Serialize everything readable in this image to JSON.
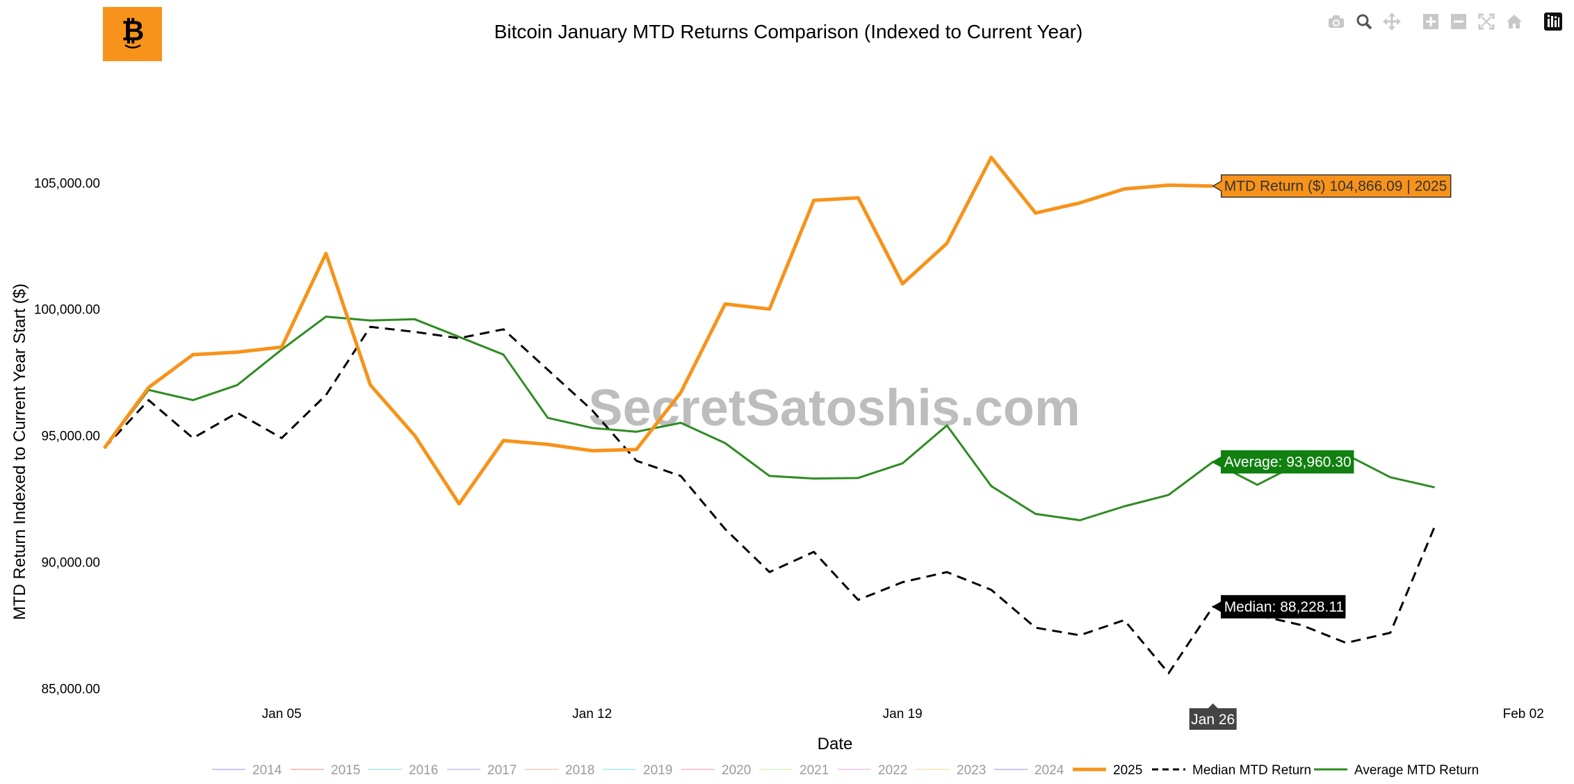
{
  "header": {
    "title": "Bitcoin January MTD Returns Comparison (Indexed to Current Year)",
    "watermark": "SecretSatoshis.com",
    "logo_icon": "bitcoin-face-logo"
  },
  "modebar": {
    "buttons": [
      "camera-icon",
      "zoom-icon",
      "pan-icon",
      "zoom-in-icon",
      "zoom-out-icon",
      "autoscale-icon",
      "home-icon",
      "plotly-logo-icon"
    ]
  },
  "colors": {
    "y2025": "#f7931a",
    "average": "#2e8b22",
    "median": "#000000",
    "average_label_bg": "#118011",
    "median_label_bg": "#000000",
    "x_hover_bg": "#444444"
  },
  "hover": {
    "line_2025": "MTD Return ($) 104,866.09 | 2025",
    "average": "Average: 93,960.30",
    "median": "Median: 88,228.11",
    "x_value": "Jan 26"
  },
  "chart_data": {
    "type": "line",
    "title": "Bitcoin January MTD Returns Comparison (Indexed to Current Year)",
    "xlabel": "Date",
    "ylabel": "MTD Return Indexed to Current Year Start ($)",
    "x_range": [
      "2025-01-01",
      "2025-02-03"
    ],
    "ylim": [
      84600,
      109200
    ],
    "y_ticks": [
      85000,
      90000,
      95000,
      100000,
      105000
    ],
    "y_tick_labels": [
      "85,000.00",
      "90,000.00",
      "95,000.00",
      "100,000.00",
      "105,000.00"
    ],
    "x_ticks": [
      "2025-01-05",
      "2025-01-12",
      "2025-01-19",
      "2025-02-02"
    ],
    "x_tick_labels": [
      "Jan 05",
      "Jan 12",
      "Jan 19",
      "Feb 02"
    ],
    "grid": false,
    "legend_position": "bottom",
    "legend": [
      "2014",
      "2015",
      "2016",
      "2017",
      "2018",
      "2019",
      "2020",
      "2021",
      "2022",
      "2023",
      "2024",
      "2025",
      "Median MTD Return",
      "Average MTD Return"
    ],
    "series": [
      {
        "name": "2025",
        "color": "#f7931a",
        "dash": "solid",
        "x": [
          "2025-01-01",
          "2025-01-02",
          "2025-01-03",
          "2025-01-04",
          "2025-01-05",
          "2025-01-06",
          "2025-01-07",
          "2025-01-08",
          "2025-01-09",
          "2025-01-10",
          "2025-01-11",
          "2025-01-12",
          "2025-01-13",
          "2025-01-14",
          "2025-01-15",
          "2025-01-16",
          "2025-01-17",
          "2025-01-18",
          "2025-01-19",
          "2025-01-20",
          "2025-01-21",
          "2025-01-22",
          "2025-01-23",
          "2025-01-24",
          "2025-01-25",
          "2025-01-26"
        ],
        "values": [
          94500,
          96900,
          98200,
          98300,
          98500,
          102200,
          97000,
          95000,
          92300,
          94800,
          94650,
          94400,
          94450,
          96700,
          100200,
          100000,
          104300,
          104400,
          101000,
          102600,
          106000,
          103800,
          104200,
          104750,
          104900,
          104866.09
        ]
      },
      {
        "name": "Average MTD Return",
        "color": "#2e8b22",
        "dash": "solid",
        "x": [
          "2025-01-01",
          "2025-01-02",
          "2025-01-03",
          "2025-01-04",
          "2025-01-05",
          "2025-01-06",
          "2025-01-07",
          "2025-01-08",
          "2025-01-09",
          "2025-01-10",
          "2025-01-11",
          "2025-01-12",
          "2025-01-13",
          "2025-01-14",
          "2025-01-15",
          "2025-01-16",
          "2025-01-17",
          "2025-01-18",
          "2025-01-19",
          "2025-01-20",
          "2025-01-21",
          "2025-01-22",
          "2025-01-23",
          "2025-01-24",
          "2025-01-25",
          "2025-01-26",
          "2025-01-27",
          "2025-01-28",
          "2025-01-29",
          "2025-01-30",
          "2025-01-31"
        ],
        "values": [
          94500,
          96800,
          96400,
          97000,
          98400,
          99700,
          99550,
          99600,
          98900,
          98200,
          95700,
          95300,
          95150,
          95500,
          94700,
          93400,
          93300,
          93320,
          93900,
          95400,
          93000,
          91900,
          91650,
          92200,
          92650,
          93960.3,
          93050,
          93950,
          94250,
          93350,
          92950
        ]
      },
      {
        "name": "Median MTD Return",
        "color": "#000000",
        "dash": "dashed",
        "x": [
          "2025-01-01",
          "2025-01-02",
          "2025-01-03",
          "2025-01-04",
          "2025-01-05",
          "2025-01-06",
          "2025-01-07",
          "2025-01-08",
          "2025-01-09",
          "2025-01-10",
          "2025-01-11",
          "2025-01-12",
          "2025-01-13",
          "2025-01-14",
          "2025-01-15",
          "2025-01-16",
          "2025-01-17",
          "2025-01-18",
          "2025-01-19",
          "2025-01-20",
          "2025-01-21",
          "2025-01-22",
          "2025-01-23",
          "2025-01-24",
          "2025-01-25",
          "2025-01-26",
          "2025-01-27",
          "2025-01-28",
          "2025-01-29",
          "2025-01-30",
          "2025-01-31"
        ],
        "values": [
          94500,
          96400,
          94900,
          95900,
          94900,
          96600,
          99300,
          99100,
          98850,
          99200,
          97600,
          96000,
          94000,
          93400,
          91300,
          89600,
          90400,
          88500,
          89200,
          89600,
          88900,
          87400,
          87100,
          87700,
          85600,
          88228.11,
          87900,
          87500,
          86800,
          87200,
          91400
        ]
      }
    ]
  }
}
